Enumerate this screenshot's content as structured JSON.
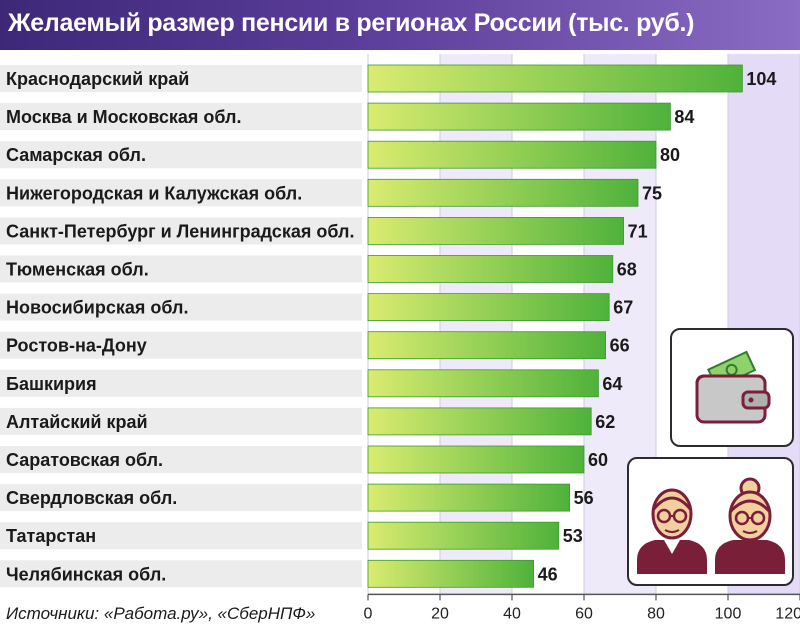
{
  "title": "Желаемый размер пенсии в регионах России (тыс. руб.)",
  "source": "Источники: «Работа.ру», «СберНПФ»",
  "colors": {
    "bar_start": "#d9ec70",
    "bar_end": "#4fb23b",
    "title_bg": "#4a3188",
    "label_bg": "#ececec",
    "plot_bg": "#efeafa",
    "icon_accent": "#7a1f3a"
  },
  "icons": [
    "wallet-icon",
    "elderly-couple-icon"
  ],
  "chart_data": {
    "type": "bar",
    "orientation": "horizontal",
    "title": "Желаемый размер пенсии в регионах России (тыс. руб.)",
    "categories": [
      "Краснодарский край",
      "Москва и Московская обл.",
      "Самарская обл.",
      "Нижегородская и Калужская обл.",
      "Санкт-Петербург и Ленинградская обл.",
      "Тюменская обл.",
      "Новосибирская обл.",
      "Ростов-на-Дону",
      "Башкирия",
      "Алтайский край",
      "Саратовская обл.",
      "Свердловская обл.",
      "Татарстан",
      "Челябинская обл."
    ],
    "values": [
      104,
      84,
      80,
      75,
      71,
      68,
      67,
      66,
      64,
      62,
      60,
      56,
      53,
      46
    ],
    "xticks": [
      "0",
      "20",
      "40",
      "60",
      "80",
      "100",
      "120"
    ],
    "xlim": [
      0,
      120
    ],
    "grid": true
  }
}
